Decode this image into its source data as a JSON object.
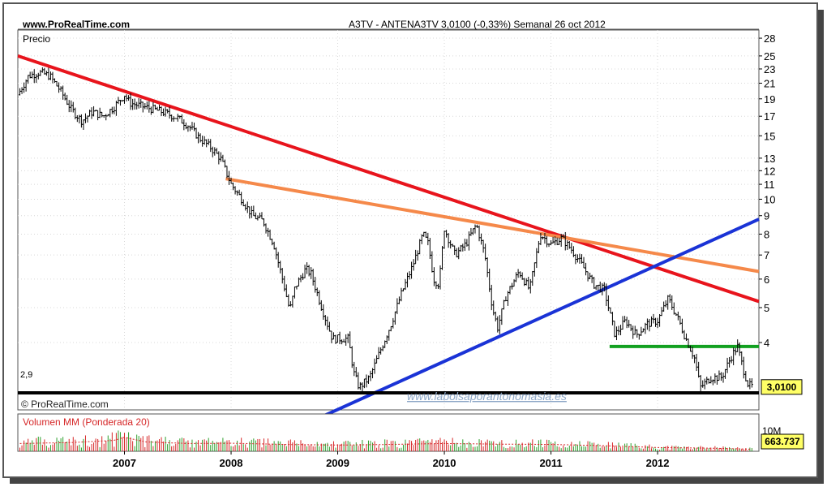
{
  "header": {
    "site": "www.ProRealTime.com",
    "title": "A3TV - ANTENA3TV    3,0100 (-0,33%)    Semanal  26 oct 2012"
  },
  "price_panel": {
    "label": "Precio",
    "watermark": "© ProRealTime.com",
    "url_watermark": "www.labolsaporantonomasia.es",
    "last_price_label": "3,0100",
    "support_label": "2,9"
  },
  "volume_panel": {
    "label": "Volumen MM (Ponderada 20)",
    "scale_label": "10M",
    "last_value_label": "663.737"
  },
  "colors": {
    "frame_border": "#555555",
    "price_bars": "#000000",
    "resistance_red": "#e8141c",
    "resistance_orange": "#f5894a",
    "support_blue": "#1a33d6",
    "support_green": "#12a020",
    "support_black": "#000000",
    "grid": "#d8d8d8",
    "label_yellow": "#ffff66",
    "volume_up": "#2ca02c",
    "volume_down": "#d62728"
  },
  "chart_data": {
    "type": "ohlc",
    "scale": "log",
    "x_ticks": [
      "2007",
      "2008",
      "2009",
      "2010",
      "2011",
      "2012"
    ],
    "y_ticks": [
      "28",
      "25",
      "23",
      "21",
      "19",
      "17",
      "15",
      "13",
      "12",
      "11",
      "10",
      "9",
      "8",
      "7",
      "6",
      "5",
      "4"
    ],
    "y_tick_values": [
      28,
      25,
      23,
      21,
      19,
      17,
      15,
      13,
      12,
      11,
      10,
      9,
      8,
      7,
      6,
      5,
      4
    ],
    "ylim": [
      2.6,
      29.5
    ],
    "xlim": [
      2006.0,
      2012.95
    ],
    "last_price": 3.01,
    "price_path": [
      [
        2006.0,
        19.5
      ],
      [
        2006.1,
        22.0
      ],
      [
        2006.2,
        22.5
      ],
      [
        2006.3,
        22.0
      ],
      [
        2006.4,
        20.0
      ],
      [
        2006.5,
        17.8
      ],
      [
        2006.6,
        16.5
      ],
      [
        2006.7,
        17.5
      ],
      [
        2006.8,
        17.0
      ],
      [
        2006.9,
        18.0
      ],
      [
        2007.0,
        19.5
      ],
      [
        2007.05,
        18.5
      ],
      [
        2007.2,
        18.0
      ],
      [
        2007.35,
        17.5
      ],
      [
        2007.5,
        16.8
      ],
      [
        2007.6,
        16.0
      ],
      [
        2007.7,
        14.8
      ],
      [
        2007.8,
        14.0
      ],
      [
        2007.9,
        13.0
      ],
      [
        2008.0,
        11.0
      ],
      [
        2008.1,
        10.0
      ],
      [
        2008.2,
        9.0
      ],
      [
        2008.3,
        8.7
      ],
      [
        2008.4,
        7.5
      ],
      [
        2008.5,
        5.7
      ],
      [
        2008.55,
        4.9
      ],
      [
        2008.6,
        5.7
      ],
      [
        2008.7,
        6.4
      ],
      [
        2008.75,
        6.2
      ],
      [
        2008.85,
        5.0
      ],
      [
        2008.95,
        4.1
      ],
      [
        2009.1,
        4.1
      ],
      [
        2009.15,
        3.3
      ],
      [
        2009.2,
        3.0
      ],
      [
        2009.3,
        3.2
      ],
      [
        2009.4,
        3.8
      ],
      [
        2009.5,
        4.5
      ],
      [
        2009.6,
        5.5
      ],
      [
        2009.7,
        6.5
      ],
      [
        2009.75,
        7.2
      ],
      [
        2009.8,
        8.0
      ],
      [
        2009.85,
        7.5
      ],
      [
        2009.9,
        6.0
      ],
      [
        2009.95,
        5.8
      ],
      [
        2010.0,
        8.3
      ],
      [
        2010.1,
        7.0
      ],
      [
        2010.2,
        7.5
      ],
      [
        2010.3,
        8.5
      ],
      [
        2010.38,
        7.0
      ],
      [
        2010.45,
        5.0
      ],
      [
        2010.5,
        4.4
      ],
      [
        2010.58,
        5.4
      ],
      [
        2010.7,
        6.3
      ],
      [
        2010.8,
        5.6
      ],
      [
        2010.9,
        8.0
      ],
      [
        2011.0,
        7.5
      ],
      [
        2011.1,
        7.8
      ],
      [
        2011.2,
        7.2
      ],
      [
        2011.3,
        6.5
      ],
      [
        2011.4,
        5.8
      ],
      [
        2011.5,
        5.6
      ],
      [
        2011.6,
        4.2
      ],
      [
        2011.7,
        4.6
      ],
      [
        2011.8,
        4.2
      ],
      [
        2011.9,
        4.5
      ],
      [
        2012.0,
        4.6
      ],
      [
        2012.1,
        5.3
      ],
      [
        2012.2,
        4.6
      ],
      [
        2012.25,
        4.2
      ],
      [
        2012.35,
        3.6
      ],
      [
        2012.4,
        3.0
      ],
      [
        2012.5,
        3.2
      ],
      [
        2012.6,
        3.2
      ],
      [
        2012.7,
        3.7
      ],
      [
        2012.75,
        3.9
      ],
      [
        2012.8,
        3.4
      ],
      [
        2012.85,
        3.05
      ],
      [
        2012.9,
        3.01
      ]
    ],
    "trendlines": [
      {
        "name": "resistance-red",
        "color": "#e8141c",
        "from": [
          2006.0,
          25.0
        ],
        "to": [
          2012.95,
          5.2
        ]
      },
      {
        "name": "resistance-orange",
        "color": "#f5894a",
        "from": [
          2007.95,
          11.4
        ],
        "to": [
          2012.95,
          6.3
        ]
      },
      {
        "name": "support-blue",
        "color": "#1a33d6",
        "from": [
          2008.45,
          2.2
        ],
        "to": [
          2012.95,
          8.8
        ]
      },
      {
        "name": "support-green",
        "color": "#12a020",
        "from": [
          2011.55,
          3.9
        ],
        "to": [
          2012.95,
          3.9
        ]
      },
      {
        "name": "support-black",
        "color": "#000000",
        "from": [
          2006.0,
          2.9
        ],
        "to": [
          2012.95,
          2.9
        ]
      }
    ],
    "volume": {
      "label": "Volumen MM (Ponderada 20)",
      "ylim": [
        0,
        12
      ],
      "scale_tick": 10,
      "last_value": 0.663737,
      "levels": [
        [
          2006.0,
          2.5
        ],
        [
          2006.5,
          2.8
        ],
        [
          2006.9,
          3.5
        ],
        [
          2007.0,
          4.5
        ],
        [
          2007.2,
          3.0
        ],
        [
          2007.6,
          2.5
        ],
        [
          2008.0,
          2.6
        ],
        [
          2008.5,
          2.2
        ],
        [
          2009.0,
          2.0
        ],
        [
          2009.5,
          2.2
        ],
        [
          2010.0,
          2.5
        ],
        [
          2010.5,
          2.3
        ],
        [
          2011.0,
          2.2
        ],
        [
          2011.5,
          1.8
        ],
        [
          2012.0,
          1.2
        ],
        [
          2012.5,
          1.0
        ],
        [
          2012.9,
          0.66
        ]
      ]
    }
  }
}
